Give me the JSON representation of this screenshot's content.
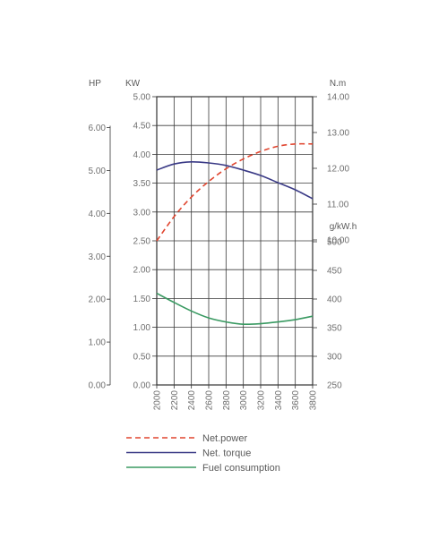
{
  "chart_data": {
    "type": "line",
    "x": [
      2000,
      2200,
      2400,
      2600,
      2800,
      3000,
      3200,
      3400,
      3600,
      3800
    ],
    "x_tick_labels": [
      "2000",
      "2200",
      "2400",
      "2600",
      "2800",
      "3000",
      "3200",
      "3400",
      "3600",
      "3800"
    ],
    "axes": {
      "hp": {
        "unit_label": "HP",
        "ticks": [
          "0.00",
          "1.00",
          "2.00",
          "3.00",
          "4.00",
          "5.00",
          "6.00"
        ],
        "range": [
          0,
          6.72
        ]
      },
      "kw": {
        "unit_label": "KW",
        "ticks": [
          "0.00",
          "0.50",
          "1.00",
          "1.50",
          "2.00",
          "2.50",
          "3.00",
          "3.50",
          "4.00",
          "4.50",
          "5.00"
        ],
        "range": [
          0,
          5.0
        ]
      },
      "torque": {
        "unit_label": "N.m",
        "ticks": [
          "10.00",
          "11.00",
          "12.00",
          "13.00",
          "14.00"
        ],
        "range": [
          10.0,
          14.0
        ]
      },
      "fuel": {
        "unit_label": "g/kW.h",
        "ticks": [
          "250",
          "300",
          "350",
          "400",
          "450",
          "500"
        ],
        "range": [
          250,
          500
        ]
      }
    },
    "series": [
      {
        "name": "Net.power",
        "axis": "kw",
        "color": "#e0452f",
        "dash": true,
        "x": [
          2000,
          2200,
          2400,
          2600,
          2800,
          3000,
          3200,
          3400,
          3600,
          3800
        ],
        "values": [
          2.5,
          2.92,
          3.26,
          3.53,
          3.75,
          3.92,
          4.05,
          4.14,
          4.18,
          4.18
        ]
      },
      {
        "name": "Net. torque",
        "axis": "torque",
        "color": "#3a3a86",
        "dash": false,
        "x": [
          2000,
          2200,
          2400,
          2600,
          2800,
          3000,
          3200,
          3400,
          3600,
          3800
        ],
        "values": [
          11.95,
          12.12,
          12.18,
          12.15,
          12.08,
          11.95,
          11.8,
          11.6,
          11.4,
          11.15
        ]
      },
      {
        "name": "Fuel consumption",
        "axis": "fuel",
        "color": "#3a9a62",
        "dash": false,
        "x": [
          2000,
          2200,
          2400,
          2600,
          2800,
          3000,
          3200,
          3400,
          3600,
          3800
        ],
        "values": [
          410,
          394,
          379,
          367,
          360,
          356,
          357,
          360,
          364,
          370
        ]
      }
    ],
    "grid": true,
    "legend": {
      "position": "bottom",
      "entries": [
        "Net.power",
        "Net. torque",
        "Fuel consumption"
      ]
    }
  }
}
